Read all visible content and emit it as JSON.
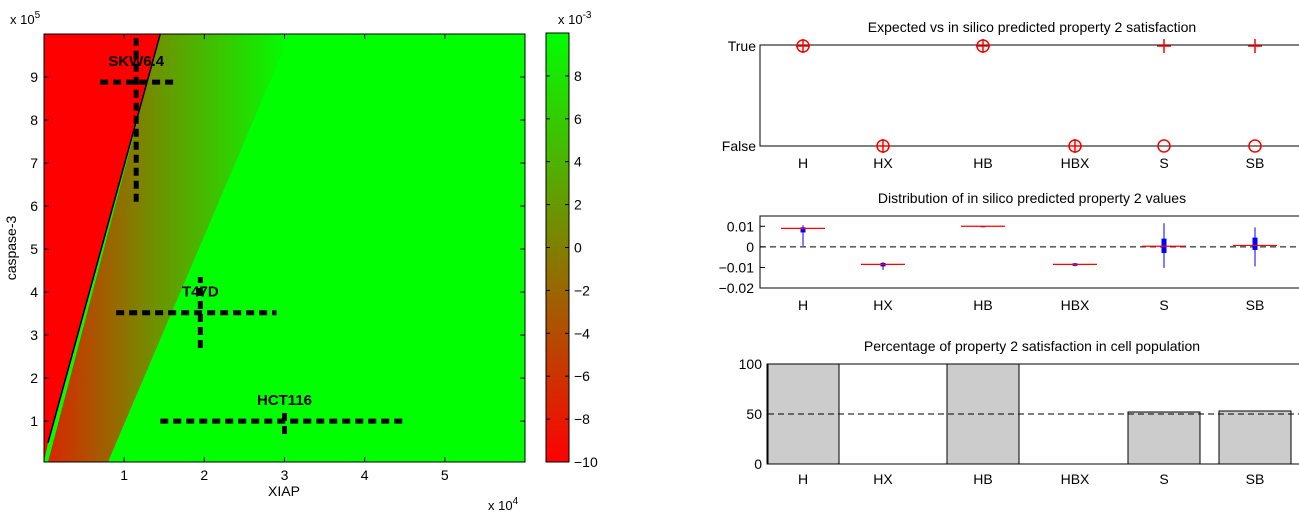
{
  "chart_data": [
    {
      "type": "heatmap",
      "xlabel": "XIAP",
      "ylabel": "caspase-3",
      "x_exponent_label": "x 10",
      "x_exponent": "4",
      "y_exponent_label": "x 10",
      "y_exponent": "5",
      "xlim": [
        0,
        6
      ],
      "ylim": [
        0.05,
        10
      ],
      "xticks": [
        1,
        2,
        3,
        4,
        5
      ],
      "yticks": [
        1,
        2,
        3,
        4,
        5,
        6,
        7,
        8,
        9
      ],
      "colorbar": {
        "exponent_label": "x 10",
        "exponent": "-3",
        "range": [
          -10,
          10
        ],
        "ticks": [
          -10,
          -8,
          -6,
          -4,
          -2,
          0,
          2,
          4,
          6,
          8
        ],
        "colors": {
          "low": "#ff0000",
          "high": "#00ff00"
        }
      },
      "zero_contour": [
        [
          0.05,
          0.5
        ],
        [
          1.45,
          10
        ]
      ],
      "cell_lines": [
        {
          "label": "SKW6.4",
          "x": 1.15,
          "y": 8.88,
          "x_range": [
            0.7,
            1.62
          ],
          "y_range": [
            6.1,
            9.9
          ]
        },
        {
          "label": "T47D",
          "x": 1.95,
          "y": 3.52,
          "x_range": [
            0.9,
            2.9
          ],
          "y_range": [
            2.7,
            4.35
          ]
        },
        {
          "label": "HCT116",
          "x": 3.0,
          "y": 1.0,
          "x_range": [
            1.45,
            4.5
          ],
          "y_range": [
            0.7,
            1.2
          ]
        }
      ]
    },
    {
      "type": "scatter",
      "title": "Expected vs in silico predicted property 2 satisfaction",
      "categories": [
        "H",
        "HX",
        "HB",
        "HBX",
        "S",
        "SB"
      ],
      "yticklabels": [
        "True",
        "False"
      ],
      "series": [
        {
          "name": "expected",
          "marker": "circle",
          "values": [
            true,
            false,
            true,
            false,
            false,
            false
          ]
        },
        {
          "name": "predicted",
          "marker": "plus",
          "values": [
            true,
            false,
            true,
            false,
            true,
            true
          ]
        }
      ],
      "color": "#ff0000"
    },
    {
      "type": "box",
      "title": "Distribution of in silico predicted property 2 values",
      "categories": [
        "H",
        "HX",
        "HB",
        "HBX",
        "S",
        "SB"
      ],
      "ylim": [
        -0.02,
        0.015
      ],
      "yticks": [
        "0.01",
        "0",
        "-0.01",
        "-0.02"
      ],
      "ytick_values": [
        0.01,
        0,
        -0.01,
        -0.02
      ],
      "reference_line": 0,
      "boxes": [
        {
          "median": 0.009,
          "q1": 0.007,
          "q3": 0.0095,
          "min": 0.0005,
          "max": 0.0105
        },
        {
          "median": -0.0085,
          "q1": -0.0095,
          "q3": -0.0078,
          "min": -0.0112,
          "max": -0.0075
        },
        {
          "median": 0.01,
          "q1": 0.01,
          "q3": 0.01,
          "min": 0.01,
          "max": 0.01
        },
        {
          "median": -0.0085,
          "q1": -0.0092,
          "q3": -0.008,
          "min": -0.0095,
          "max": -0.0078
        },
        {
          "median": 0.0003,
          "q1": -0.003,
          "q3": 0.004,
          "min": -0.0102,
          "max": 0.0115
        },
        {
          "median": 0.0007,
          "q1": -0.0015,
          "q3": 0.0045,
          "min": -0.0095,
          "max": 0.0095
        }
      ],
      "colors": {
        "box": "#0000ff",
        "median": "#ff0000"
      }
    },
    {
      "type": "bar",
      "title": "Percentage of property 2 satisfaction in cell population",
      "categories": [
        "H",
        "HX",
        "HB",
        "HBX",
        "S",
        "SB"
      ],
      "values": [
        100,
        0,
        100,
        0,
        52,
        53
      ],
      "ylim": [
        0,
        100
      ],
      "yticks": [
        0,
        50,
        100
      ],
      "reference_line": 50,
      "bar_color": "#cccccc"
    }
  ]
}
